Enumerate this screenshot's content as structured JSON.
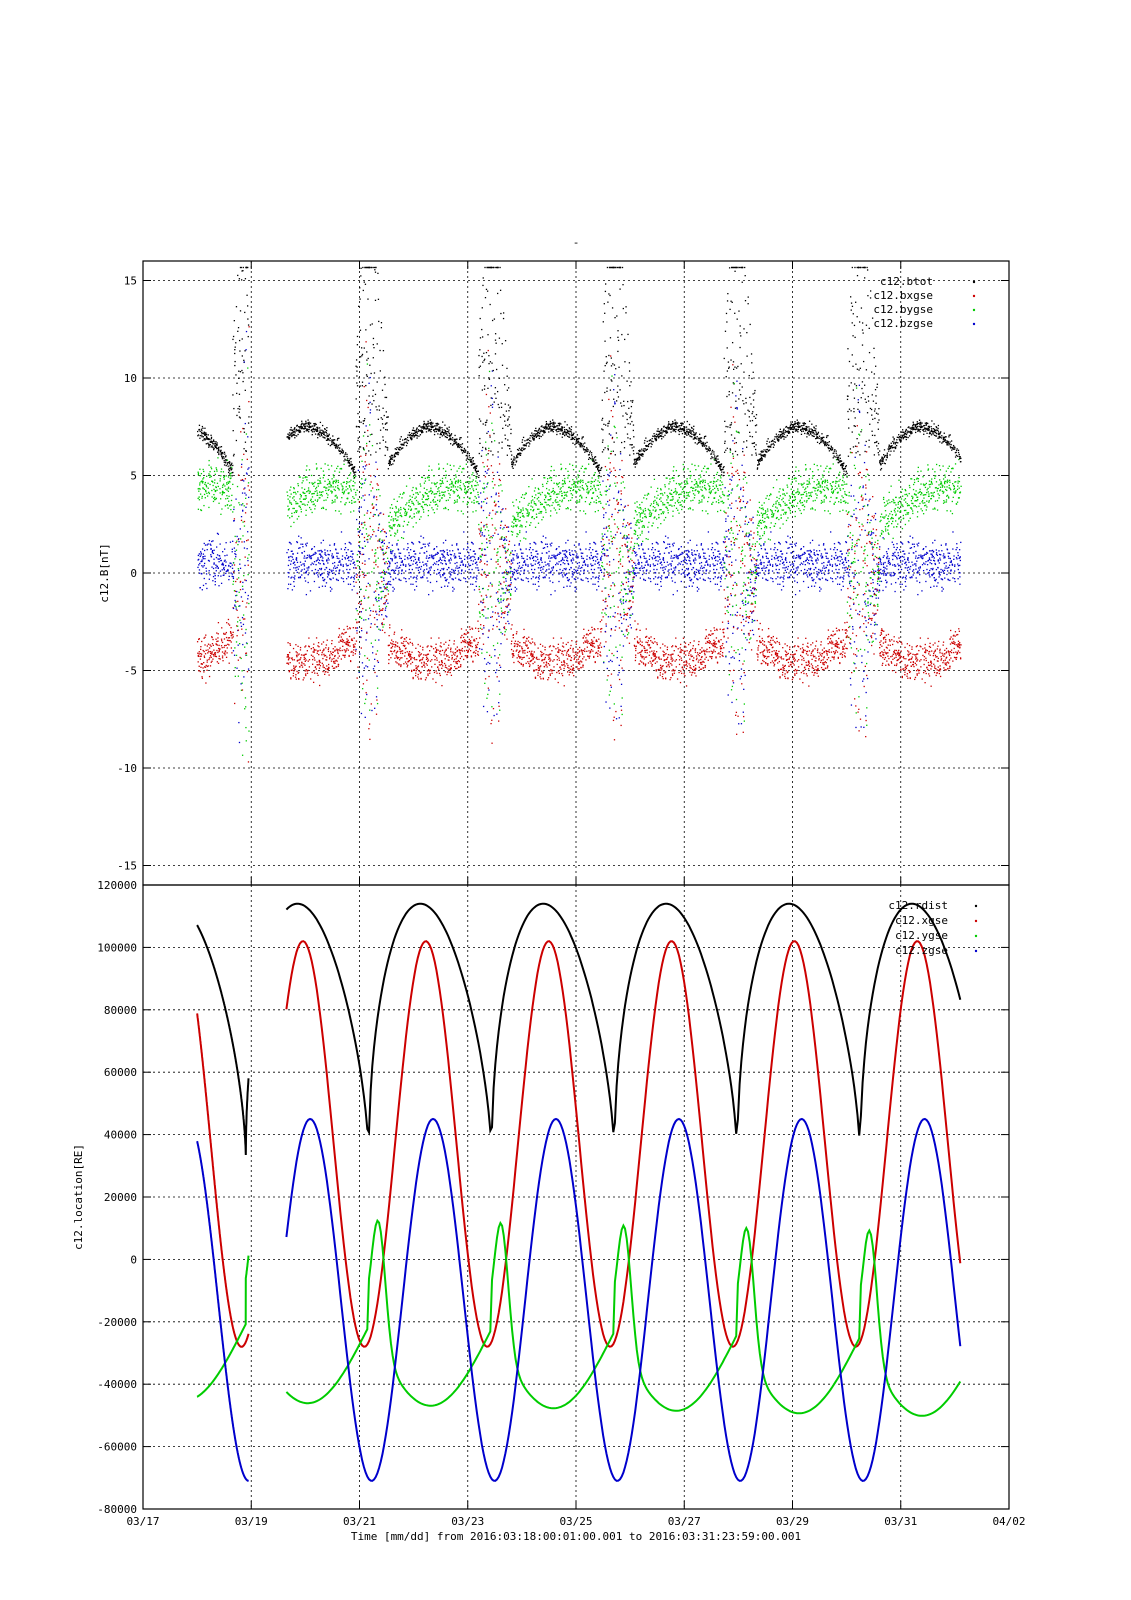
{
  "figure": {
    "top_mark": "-",
    "xlabel": "Time [mm/dd]  from 2016:03:18:00:01:00.001  to  2016:03:31:23:59:00.001"
  },
  "chart_data": [
    {
      "type": "scatter",
      "ylabel": "c12.B[nT]",
      "ylim": [
        -16,
        16
      ],
      "yticks": [
        15,
        10,
        5,
        0,
        -5,
        -10,
        -15
      ],
      "ytick_labels": [
        "15",
        "10",
        "5",
        "0",
        "-5",
        "-10",
        "-15"
      ],
      "xlim": [
        "03/17",
        "04/02"
      ],
      "grid": true,
      "legend_position": "top-right",
      "series": [
        {
          "name": "c12.btot",
          "color": "#000000"
        },
        {
          "name": "c12.bxgse",
          "color": "#cc0000"
        },
        {
          "name": "c12.bygse",
          "color": "#00cc00"
        },
        {
          "name": "c12.bzgse",
          "color": "#0000cc"
        }
      ]
    },
    {
      "type": "line",
      "ylabel": "c12.location[RE]",
      "ylim": [
        -80000,
        120000
      ],
      "yticks": [
        120000,
        100000,
        80000,
        60000,
        40000,
        20000,
        0,
        -20000,
        -40000,
        -60000,
        -80000
      ],
      "ytick_labels": [
        "120000",
        "100000",
        "80000",
        "60000",
        "40000",
        "20000",
        "0",
        "-20000",
        "-40000",
        "-60000",
        "-80000"
      ],
      "xticks": [
        "03/17",
        "03/19",
        "03/21",
        "03/23",
        "03/25",
        "03/27",
        "03/29",
        "03/31",
        "04/02"
      ],
      "xlim": [
        "03/17",
        "04/02"
      ],
      "grid": true,
      "legend_position": "top-right",
      "series": [
        {
          "name": "c12.rdist",
          "color": "#000000"
        },
        {
          "name": "c12.xgse",
          "color": "#cc0000"
        },
        {
          "name": "c12.ygse",
          "color": "#00cc00"
        },
        {
          "name": "c12.zgse",
          "color": "#0000cc"
        }
      ]
    }
  ]
}
